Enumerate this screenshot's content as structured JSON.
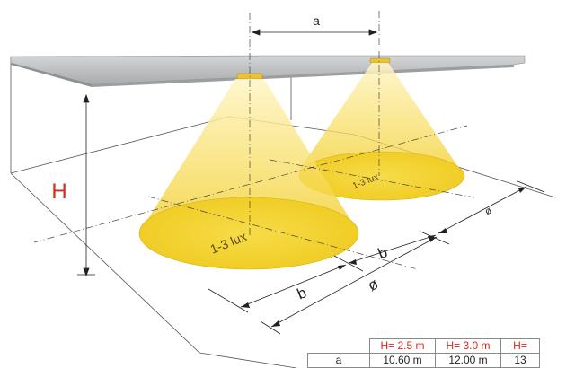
{
  "labels": {
    "height_symbol": "H",
    "spacing_symbol": "a",
    "diameter_symbol": "ø",
    "radius_symbol": "b",
    "far_symbol": "ø",
    "lux_large": "1-3 lux",
    "lux_small": "1-3 lux"
  },
  "colors": {
    "height_label": "#e0251b",
    "light_cone": "#f7d54a",
    "light_pool": "#f3d12e",
    "ceiling": "#c4c6c8"
  },
  "table": {
    "headers": [
      "",
      "H= 2.5 m",
      "H= 3.0 m",
      "H="
    ],
    "rows": [
      {
        "label": "a",
        "values": [
          "10.60 m",
          "12.00 m",
          "13"
        ]
      }
    ]
  }
}
